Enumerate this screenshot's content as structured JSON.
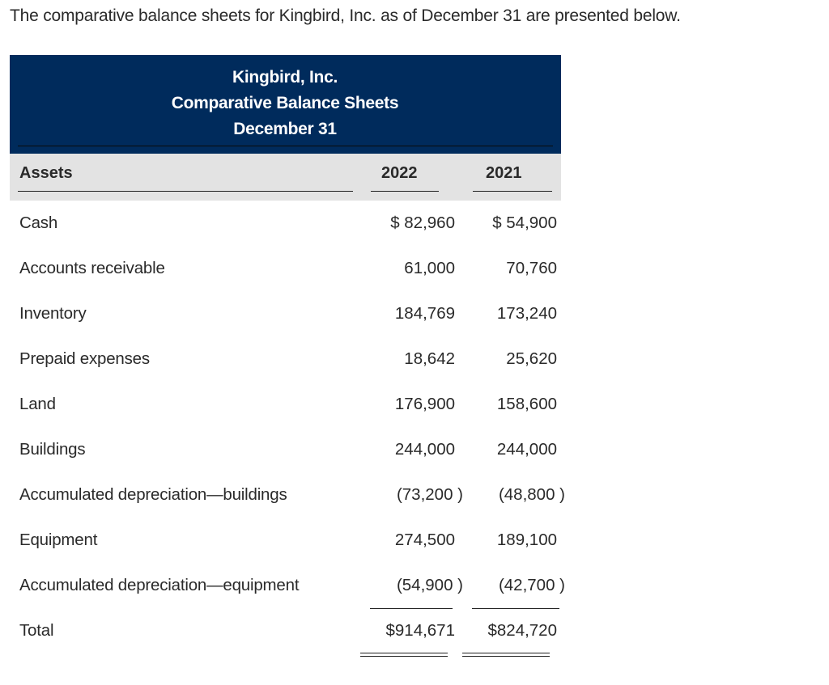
{
  "intro": "The comparative balance sheets for Kingbird, Inc. as of December 31 are presented below.",
  "title": {
    "company": "Kingbird, Inc.",
    "statement": "Comparative Balance Sheets",
    "date": "December 31"
  },
  "header": {
    "assets": "Assets",
    "y2022": "2022",
    "y2021": "2021"
  },
  "rows": [
    {
      "name": "Cash",
      "v2022": "$ 82,960",
      "v2021": "$ 54,900"
    },
    {
      "name": "Accounts receivable",
      "v2022": "61,000",
      "v2021": "70,760"
    },
    {
      "name": "Inventory",
      "v2022": "184,769",
      "v2021": "173,240"
    },
    {
      "name": "Prepaid expenses",
      "v2022": "18,642",
      "v2021": "25,620"
    },
    {
      "name": "Land",
      "v2022": "176,900",
      "v2021": "158,600"
    },
    {
      "name": "Buildings",
      "v2022": "244,000",
      "v2021": "244,000"
    },
    {
      "name": "Accumulated depreciation—buildings",
      "v2022": "(73,200 )",
      "v2021": "(48,800 )"
    },
    {
      "name": "Equipment",
      "v2022": "274,500",
      "v2021": "189,100"
    },
    {
      "name": "Accumulated depreciation—equipment",
      "v2022": "(54,900 )",
      "v2021": "(42,700 )"
    },
    {
      "name": "Total",
      "v2022": "$914,671",
      "v2021": "$824,720"
    }
  ]
}
